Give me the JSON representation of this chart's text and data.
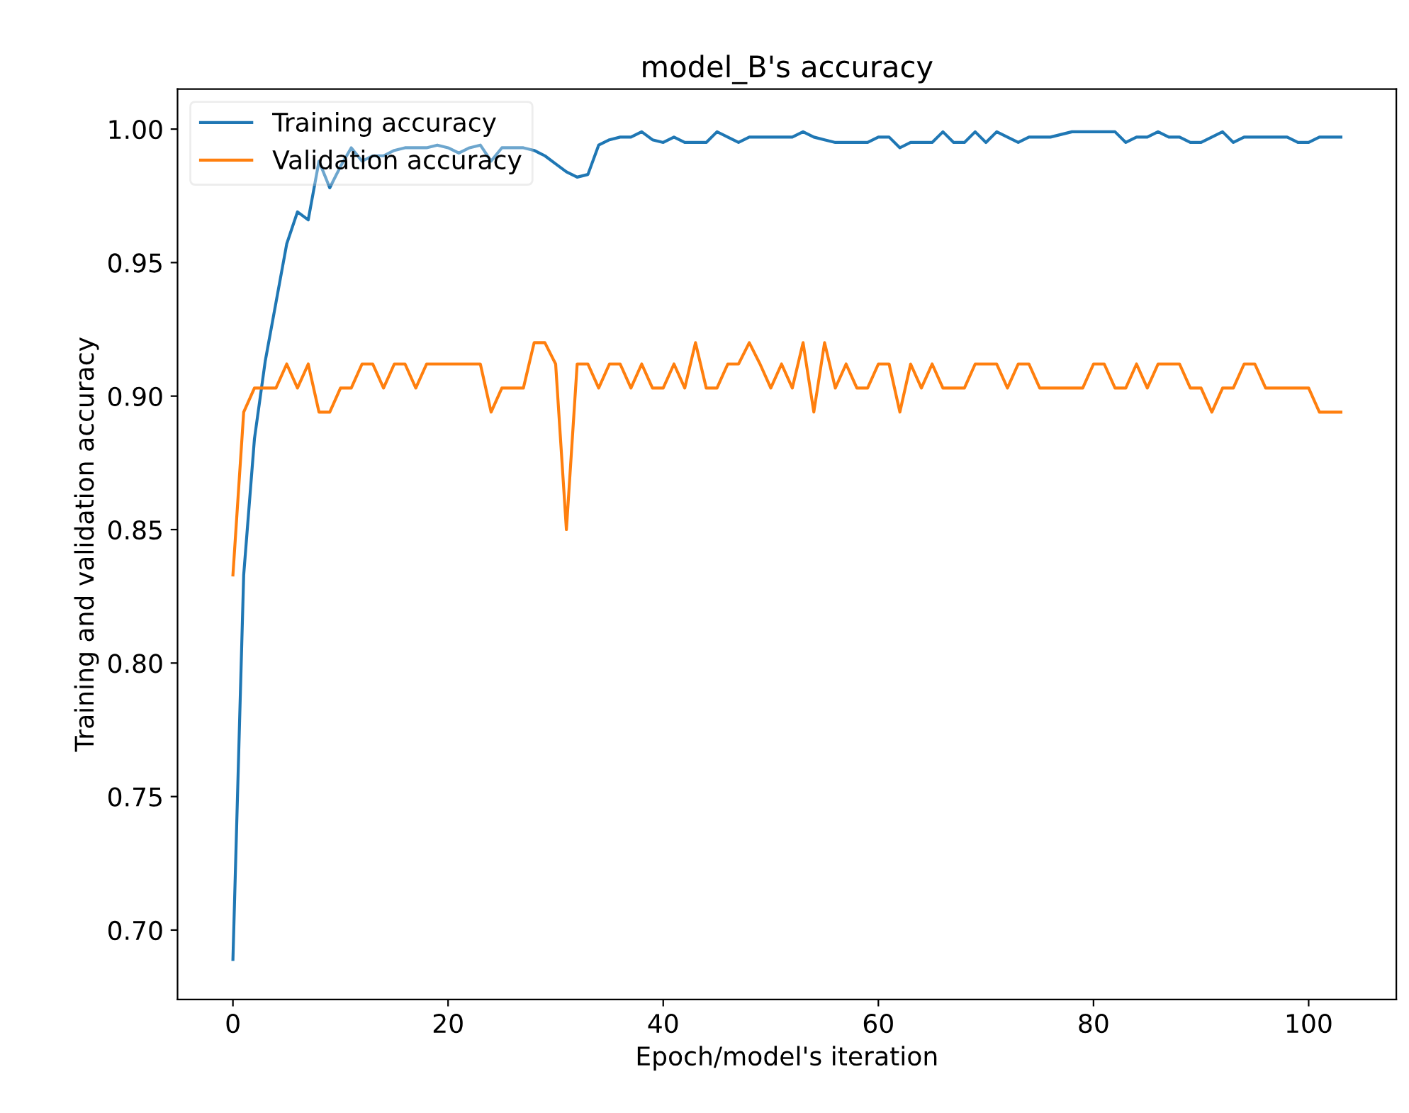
{
  "chart_data": {
    "type": "line",
    "title": "model_B's accuracy",
    "xlabel": "Epoch/model's iteration",
    "ylabel": "Training and validation accuracy",
    "x": [
      0,
      1,
      2,
      3,
      4,
      5,
      6,
      7,
      8,
      9,
      10,
      11,
      12,
      13,
      14,
      15,
      16,
      17,
      18,
      19,
      20,
      21,
      22,
      23,
      24,
      25,
      26,
      27,
      28,
      29,
      30,
      31,
      32,
      33,
      34,
      35,
      36,
      37,
      38,
      39,
      40,
      41,
      42,
      43,
      44,
      45,
      46,
      47,
      48,
      49,
      50,
      51,
      52,
      53,
      54,
      55,
      56,
      57,
      58,
      59,
      60,
      61,
      62,
      63,
      64,
      65,
      66,
      67,
      68,
      69,
      70,
      71,
      72,
      73,
      74,
      75,
      76,
      77,
      78,
      79,
      80,
      81,
      82,
      83,
      84,
      85,
      86,
      87,
      88,
      89,
      90,
      91,
      92,
      93,
      94,
      95,
      96,
      97,
      98,
      99,
      100,
      101,
      102,
      103
    ],
    "series": [
      {
        "name": "Training accuracy",
        "color": "#1f77b4",
        "values": [
          0.689,
          0.833,
          0.884,
          0.913,
          0.935,
          0.957,
          0.969,
          0.966,
          0.988,
          0.978,
          0.986,
          0.993,
          0.988,
          0.99,
          0.99,
          0.992,
          0.993,
          0.993,
          0.993,
          0.994,
          0.993,
          0.991,
          0.993,
          0.994,
          0.988,
          0.993,
          0.993,
          0.993,
          0.992,
          0.99,
          0.987,
          0.984,
          0.982,
          0.983,
          0.994,
          0.996,
          0.997,
          0.997,
          0.999,
          0.996,
          0.995,
          0.997,
          0.995,
          0.995,
          0.995,
          0.999,
          0.997,
          0.995,
          0.997,
          0.997,
          0.997,
          0.997,
          0.997,
          0.999,
          0.997,
          0.996,
          0.995,
          0.995,
          0.995,
          0.995,
          0.997,
          0.997,
          0.993,
          0.995,
          0.995,
          0.995,
          0.999,
          0.995,
          0.995,
          0.999,
          0.995,
          0.999,
          0.997,
          0.995,
          0.997,
          0.997,
          0.997,
          0.998,
          0.999,
          0.999,
          0.999,
          0.999,
          0.999,
          0.995,
          0.997,
          0.997,
          0.999,
          0.997,
          0.997,
          0.995,
          0.995,
          0.997,
          0.999,
          0.995,
          0.997,
          0.997,
          0.997,
          0.997,
          0.997,
          0.995,
          0.995,
          0.997,
          0.997,
          0.997
        ]
      },
      {
        "name": "Validation accuracy",
        "color": "#ff7f0e",
        "values": [
          0.833,
          0.894,
          0.903,
          0.903,
          0.903,
          0.912,
          0.903,
          0.912,
          0.894,
          0.894,
          0.903,
          0.903,
          0.912,
          0.912,
          0.903,
          0.912,
          0.912,
          0.903,
          0.912,
          0.912,
          0.912,
          0.912,
          0.912,
          0.912,
          0.894,
          0.903,
          0.903,
          0.903,
          0.92,
          0.92,
          0.912,
          0.85,
          0.912,
          0.912,
          0.903,
          0.912,
          0.912,
          0.903,
          0.912,
          0.903,
          0.903,
          0.912,
          0.903,
          0.92,
          0.903,
          0.903,
          0.912,
          0.912,
          0.92,
          0.912,
          0.903,
          0.912,
          0.903,
          0.92,
          0.894,
          0.92,
          0.903,
          0.912,
          0.903,
          0.903,
          0.912,
          0.912,
          0.894,
          0.912,
          0.903,
          0.912,
          0.903,
          0.903,
          0.903,
          0.912,
          0.912,
          0.912,
          0.903,
          0.912,
          0.912,
          0.903,
          0.903,
          0.903,
          0.903,
          0.903,
          0.912,
          0.912,
          0.903,
          0.903,
          0.912,
          0.903,
          0.912,
          0.912,
          0.912,
          0.903,
          0.903,
          0.894,
          0.903,
          0.903,
          0.912,
          0.912,
          0.903,
          0.903,
          0.903,
          0.903,
          0.903,
          0.894,
          0.894,
          0.894
        ]
      }
    ],
    "xlim": [
      -5.15,
      108.15
    ],
    "xticks": [
      0,
      20,
      40,
      60,
      80,
      100
    ],
    "ylim": [
      0.674,
      1.015
    ],
    "yticks": [
      {
        "value": 0.7,
        "label": "0.70"
      },
      {
        "value": 0.75,
        "label": "0.75"
      },
      {
        "value": 0.8,
        "label": "0.80"
      },
      {
        "value": 0.85,
        "label": "0.85"
      },
      {
        "value": 0.9,
        "label": "0.90"
      },
      {
        "value": 0.95,
        "label": "0.95"
      },
      {
        "value": 1.0,
        "label": "1.00"
      }
    ],
    "legend": "top left",
    "grid": false
  }
}
